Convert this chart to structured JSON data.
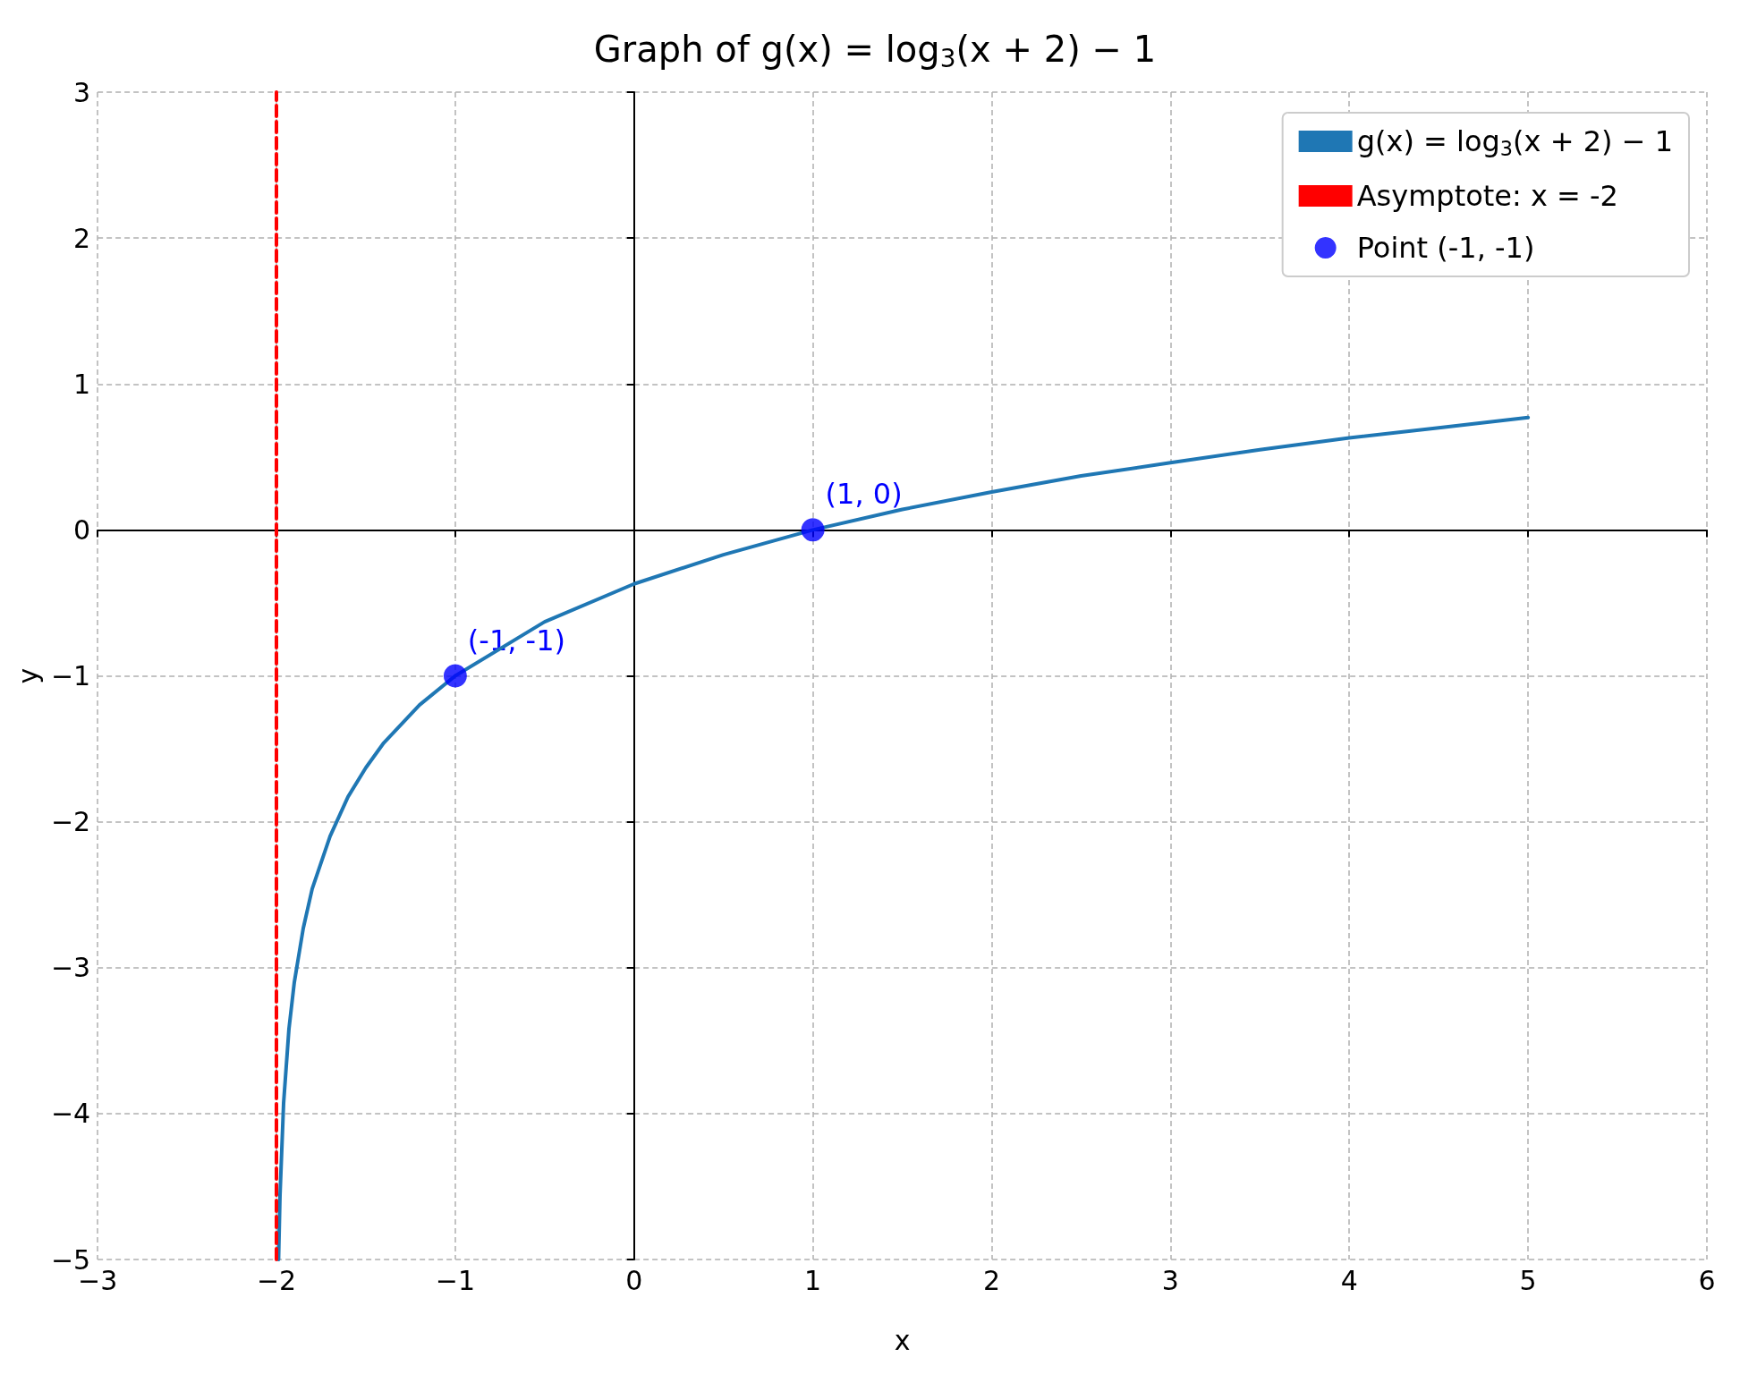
{
  "chart_data": {
    "type": "line",
    "title": "Graph of g(x) = log$_{3}$(x + 2) − 1",
    "xlabel": "x",
    "ylabel": "y",
    "series": [
      {
        "name": "g(x) = log$_{3}$(x + 2) − 1",
        "color": "#1f77b4",
        "marker": "none",
        "x": [
          -1.988,
          -1.98,
          -1.96,
          -1.93,
          -1.9,
          -1.85,
          -1.8,
          -1.7,
          -1.6,
          -1.5,
          -1.4,
          -1.2,
          -1,
          -0.5,
          0,
          0.5,
          1,
          1.5,
          2,
          2.5,
          3,
          3.5,
          4,
          4.5,
          5
        ],
        "values": [
          -5,
          -4.56,
          -3.93,
          -3.42,
          -3.1,
          -2.73,
          -2.46,
          -2.1,
          -1.83,
          -1.63,
          -1.46,
          -1.2,
          -1,
          -0.63,
          -0.37,
          -0.17,
          0,
          0.14,
          0.26,
          0.37,
          0.46,
          0.55,
          0.63,
          0.7,
          0.77
        ]
      },
      {
        "name": "Asymptote: x = -2",
        "color": "#ff0000",
        "line_style": "dashed",
        "marker": "none",
        "x": [
          -2,
          -2
        ],
        "values": [
          -5,
          3
        ]
      },
      {
        "name": "Point (-1, -1)",
        "type": "scatter",
        "color": "#0000ff",
        "marker": "circle",
        "x": [
          -1
        ],
        "values": [
          -1
        ]
      },
      {
        "type": "scatter",
        "color": "#0000ff",
        "marker": "circle",
        "x": [
          1
        ],
        "values": [
          0
        ]
      }
    ],
    "annotations": [
      {
        "text": "(-1, -1)",
        "x": -1,
        "y": -1
      },
      {
        "text": "(1, 0)",
        "x": 1,
        "y": 0
      }
    ],
    "xlim": [
      -3,
      6
    ],
    "xticks": [
      {
        "value": -3,
        "label": "−3"
      },
      {
        "value": -2,
        "label": "−2"
      },
      {
        "value": -1,
        "label": "−1"
      },
      0,
      1,
      2,
      3,
      4,
      5,
      6
    ],
    "ylim": [
      -5,
      3
    ],
    "yticks": [
      {
        "value": -5,
        "label": "−5"
      },
      {
        "value": -4,
        "label": "−4"
      },
      {
        "value": -3,
        "label": "−3"
      },
      {
        "value": -2,
        "label": "−2"
      },
      {
        "value": -1,
        "label": "−1"
      },
      0,
      1,
      2,
      3
    ],
    "grid": true,
    "legend": "top right"
  }
}
